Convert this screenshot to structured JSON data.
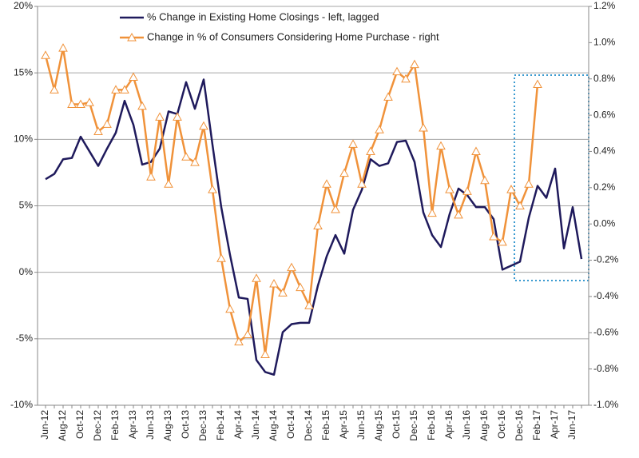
{
  "chart_data": {
    "type": "line",
    "categories": [
      "Jun-12",
      null,
      "Aug-12",
      null,
      "Oct-12",
      null,
      "Dec-12",
      null,
      "Feb-13",
      null,
      "Apr-13",
      null,
      "Jun-13",
      null,
      "Aug-13",
      null,
      "Oct-13",
      null,
      "Dec-13",
      null,
      "Feb-14",
      null,
      "Apr-14",
      null,
      "Jun-14",
      null,
      "Aug-14",
      null,
      "Oct-14",
      null,
      "Dec-14",
      null,
      "Feb-15",
      null,
      "Apr-15",
      null,
      "Jun-15",
      null,
      "Aug-15",
      null,
      "Oct-15",
      null,
      "Dec-15",
      null,
      "Feb-16",
      null,
      "Apr-16",
      null,
      "Jun-16",
      null,
      "Aug-16",
      null,
      "Oct-16",
      null,
      "Dec-16",
      null,
      "Feb-17",
      null,
      "Apr-17",
      null,
      "Jun-17",
      null
    ],
    "series": [
      {
        "name": "% Change in Existing Home Closings - left, lagged",
        "color": "#1f1a5c",
        "axis": "y",
        "values": [
          7.0,
          7.4,
          8.5,
          8.6,
          10.2,
          9.1,
          8.0,
          9.3,
          10.5,
          12.9,
          11.1,
          8.1,
          8.3,
          9.3,
          12.1,
          11.9,
          14.3,
          12.3,
          14.5,
          9.6,
          4.9,
          1.3,
          -1.9,
          -2.0,
          -6.6,
          -7.5,
          -7.7,
          -4.5,
          -3.9,
          -3.8,
          -3.8,
          -1.0,
          1.2,
          2.8,
          1.4,
          4.7,
          6.2,
          8.5,
          8.0,
          8.2,
          9.8,
          9.9,
          8.3,
          4.5,
          2.8,
          1.9,
          4.4,
          6.3,
          5.8,
          4.9,
          4.9,
          4.0,
          0.2,
          0.5,
          0.8,
          4.1,
          6.5,
          5.6,
          7.8,
          1.8,
          4.9,
          1.0
        ]
      },
      {
        "name": "Change in % of Consumers Considering Home Purchase - right",
        "color": "#f0923a",
        "axis": "y2",
        "values": [
          0.93,
          0.74,
          0.97,
          0.66,
          0.66,
          0.67,
          0.51,
          0.55,
          0.74,
          0.74,
          0.81,
          0.65,
          0.26,
          0.59,
          0.22,
          0.59,
          0.37,
          0.34,
          0.54,
          0.19,
          -0.19,
          -0.47,
          -0.65,
          -0.61,
          -0.3,
          -0.72,
          -0.33,
          -0.38,
          -0.24,
          -0.35,
          -0.45,
          -0.01,
          0.22,
          0.08,
          0.28,
          0.44,
          0.22,
          0.4,
          0.52,
          0.7,
          0.84,
          0.8,
          0.88,
          0.53,
          0.06,
          0.43,
          0.19,
          0.05,
          0.18,
          0.4,
          0.24,
          -0.07,
          -0.1,
          0.19,
          0.1,
          0.22,
          0.77,
          null,
          null,
          null,
          null,
          null
        ]
      }
    ],
    "ylim": [
      -10,
      20
    ],
    "yticks": [
      {
        "value": -10,
        "label": "-10%"
      },
      {
        "value": -5,
        "label": "-5%"
      },
      {
        "value": 0,
        "label": "0%"
      },
      {
        "value": 5,
        "label": "5%"
      },
      {
        "value": 10,
        "label": "10%"
      },
      {
        "value": 15,
        "label": "15%"
      },
      {
        "value": 20,
        "label": "20%"
      }
    ],
    "y2lim": [
      -1.0,
      1.2
    ],
    "y2ticks": [
      {
        "value": -1.0,
        "label": "-1.0%"
      },
      {
        "value": -0.8,
        "label": "-0.8%"
      },
      {
        "value": -0.6,
        "label": "-0.6%"
      },
      {
        "value": -0.4,
        "label": "-0.4%"
      },
      {
        "value": -0.2,
        "label": "-0.2%"
      },
      {
        "value": 0.0,
        "label": "0.0%"
      },
      {
        "value": 0.2,
        "label": "0.2%"
      },
      {
        "value": 0.4,
        "label": "0.4%"
      },
      {
        "value": 0.6,
        "label": "0.6%"
      },
      {
        "value": 0.8,
        "label": "0.8%"
      },
      {
        "value": 1.0,
        "label": "1.0%"
      },
      {
        "value": 1.2,
        "label": "1.2%"
      }
    ],
    "grid": true
  }
}
